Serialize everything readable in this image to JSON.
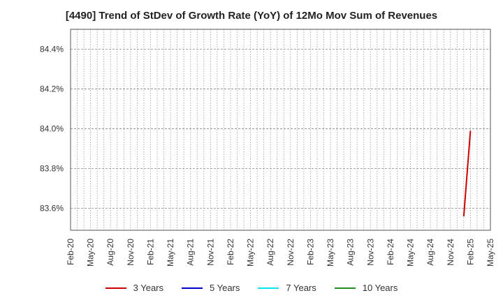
{
  "chart_data": {
    "type": "line",
    "title": "[4490]  Trend of StDev of Growth Rate (YoY) of 12Mo Mov Sum of Revenues",
    "xlabel": "",
    "ylabel": "",
    "x_ticks": [
      "Feb-20",
      "May-20",
      "Aug-20",
      "Nov-20",
      "Feb-21",
      "May-21",
      "Aug-21",
      "Nov-21",
      "Feb-22",
      "May-22",
      "Aug-22",
      "Nov-22",
      "Feb-23",
      "May-23",
      "Aug-23",
      "Nov-23",
      "Feb-24",
      "May-24",
      "Aug-24",
      "Nov-24",
      "Feb-25",
      "May-25"
    ],
    "y_ticks": [
      "83.6%",
      "83.8%",
      "84.0%",
      "84.2%",
      "84.4%"
    ],
    "y_tick_values": [
      83.6,
      83.8,
      84.0,
      84.2,
      84.4
    ],
    "ylim": [
      83.49,
      84.5
    ],
    "grid": true,
    "legend_position": "bottom",
    "series": [
      {
        "name": "3 Years",
        "color": "#cc0000",
        "x": [
          "Jan-25",
          "Feb-25"
        ],
        "y": [
          83.56,
          83.99
        ]
      },
      {
        "name": "5 Years",
        "color": "#0000cc",
        "x": [],
        "y": []
      },
      {
        "name": "7 Years",
        "color": "#00e5ee",
        "x": [],
        "y": []
      },
      {
        "name": "10 Years",
        "color": "#228b22",
        "x": [],
        "y": []
      }
    ]
  }
}
